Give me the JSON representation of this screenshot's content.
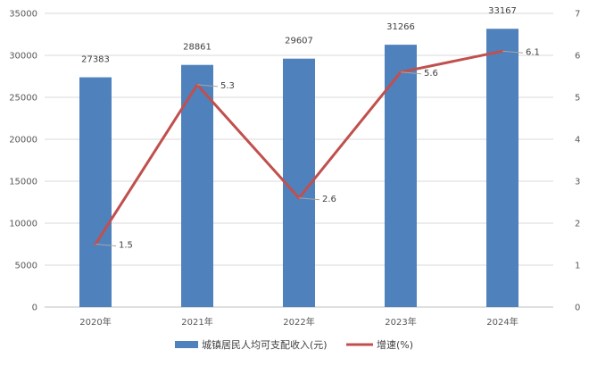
{
  "chart_data": {
    "type": "bar",
    "categories": [
      "2020年",
      "2021年",
      "2022年",
      "2023年",
      "2024年"
    ],
    "series": [
      {
        "name": "城镇居民人均可支配收入(元)",
        "type": "bar",
        "axis": "left",
        "color": "#4f81bd",
        "values": [
          27383,
          28861,
          29607,
          31266,
          33167
        ]
      },
      {
        "name": "增速(%)",
        "type": "line",
        "axis": "right",
        "color": "#c0504d",
        "values": [
          1.5,
          5.3,
          2.6,
          5.6,
          6.1
        ]
      }
    ],
    "bar_labels": [
      "27383",
      "28861",
      "29607",
      "31266",
      "33167"
    ],
    "line_labels": [
      "1.5",
      "5.3",
      "2.6",
      "5.6",
      "6.1"
    ],
    "y_left": {
      "min": 0,
      "max": 35000,
      "ticks": [
        "0",
        "5000",
        "10000",
        "15000",
        "20000",
        "25000",
        "30000",
        "35000"
      ]
    },
    "y_right": {
      "min": 0,
      "max": 7,
      "ticks": [
        "0",
        "1",
        "2",
        "3",
        "4",
        "5",
        "6",
        "7"
      ]
    },
    "grid": true,
    "legend": {
      "position": "bottom"
    }
  }
}
